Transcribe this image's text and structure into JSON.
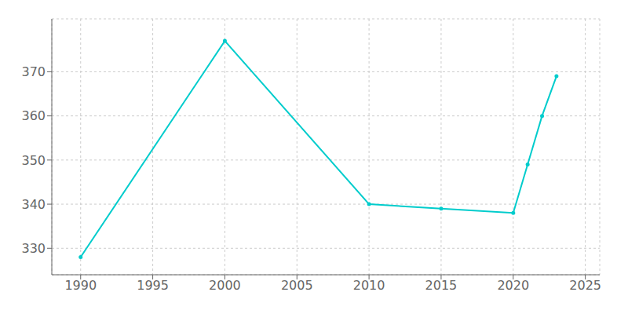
{
  "chart_data": {
    "type": "line",
    "x": [
      1990,
      2000,
      2010,
      2015,
      2020,
      2021,
      2022,
      2023
    ],
    "values": [
      328,
      377,
      340,
      339,
      338,
      349,
      360,
      369
    ],
    "color": "#00CCCC",
    "marker": "circle",
    "xlim": [
      1988,
      2026
    ],
    "ylim": [
      324,
      382
    ],
    "xticks": [
      1990,
      1995,
      2000,
      2005,
      2010,
      2015,
      2020,
      2025
    ],
    "yticks": [
      330,
      340,
      350,
      360,
      370
    ],
    "grid": true
  }
}
